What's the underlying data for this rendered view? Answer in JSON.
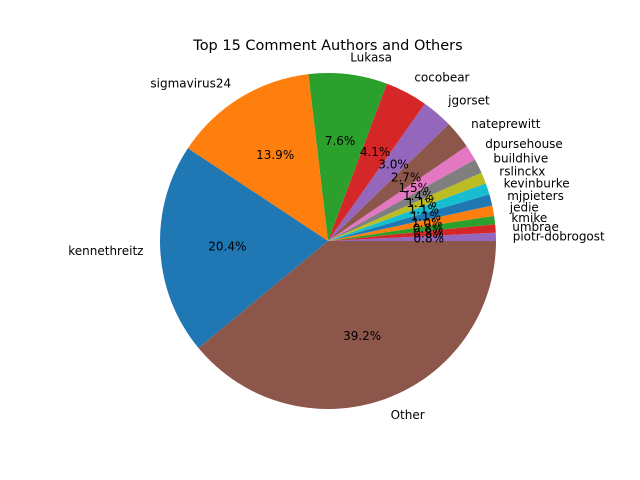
{
  "chart_data": {
    "type": "pie",
    "title": "Top 15 Comment Authors and Others",
    "start_angle_deg": 0,
    "direction": "counterclockwise",
    "slices": [
      {
        "label": "piotr-dobrogost",
        "value": 0.8,
        "pct_label": "0.8%",
        "color": "#9467bd"
      },
      {
        "label": "umbrae",
        "value": 0.8,
        "pct_label": "0.8%",
        "color": "#d62728"
      },
      {
        "label": "kmike",
        "value": 0.8,
        "pct_label": "0.8%",
        "color": "#2ca02c"
      },
      {
        "label": "jedie",
        "value": 1.0,
        "pct_label": "1.0%",
        "color": "#ff7f0e"
      },
      {
        "label": "mjpieters",
        "value": 1.1,
        "pct_label": "1.1%",
        "color": "#1f77b4"
      },
      {
        "label": "kevinburke",
        "value": 1.1,
        "pct_label": "1.1%",
        "color": "#17becf"
      },
      {
        "label": "rslinckx",
        "value": 1.1,
        "pct_label": "1.1%",
        "color": "#bcbd22"
      },
      {
        "label": "buildhive",
        "value": 1.4,
        "pct_label": "1.4%",
        "color": "#7f7f7f"
      },
      {
        "label": "dpursehouse",
        "value": 1.5,
        "pct_label": "1.5%",
        "color": "#e377c2"
      },
      {
        "label": "nateprewitt",
        "value": 2.7,
        "pct_label": "2.7%",
        "color": "#8c564b"
      },
      {
        "label": "jgorset",
        "value": 3.0,
        "pct_label": "3.0%",
        "color": "#9467bd"
      },
      {
        "label": "cocobear",
        "value": 4.1,
        "pct_label": "4.1%",
        "color": "#d62728"
      },
      {
        "label": "Lukasa",
        "value": 7.6,
        "pct_label": "7.6%",
        "color": "#2ca02c"
      },
      {
        "label": "sigmavirus24",
        "value": 13.9,
        "pct_label": "13.9%",
        "color": "#ff7f0e"
      },
      {
        "label": "kennethreitz",
        "value": 20.4,
        "pct_label": "20.4%",
        "color": "#1f77b4"
      },
      {
        "label": "Other",
        "value": 39.2,
        "pct_label": "39.2%",
        "color": "#8c564b"
      }
    ]
  }
}
